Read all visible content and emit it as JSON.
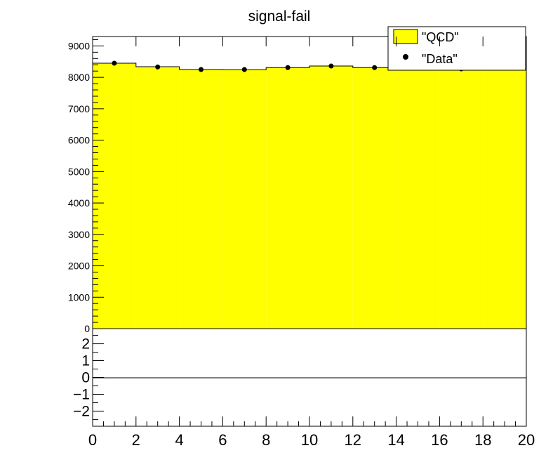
{
  "chart_data": {
    "type": "bar",
    "title": "signal-fail",
    "xlabel": "",
    "ylabel": "",
    "xlim": [
      0,
      20
    ],
    "ylim": [
      0,
      9300
    ],
    "ratio_ylim": [
      -2.9,
      2.9
    ],
    "grid": false,
    "legend_position": "top-right",
    "x_ticks": [
      "0",
      "2",
      "4",
      "6",
      "8",
      "10",
      "12",
      "14",
      "16",
      "18",
      "20"
    ],
    "y_ticks": [
      "0",
      "1000",
      "2000",
      "3000",
      "4000",
      "5000",
      "6000",
      "7000",
      "8000",
      "9000"
    ],
    "ratio_ticks": [
      "−2",
      "−1",
      "0",
      "1",
      "2"
    ],
    "bin_edges": [
      0,
      2,
      4,
      6,
      8,
      10,
      12,
      14,
      16,
      18,
      20
    ],
    "series": [
      {
        "name": "\"QCD\"",
        "kind": "histogram",
        "color": "#ffff00",
        "values": [
          8450,
          8340,
          8250,
          8240,
          8310,
          8360,
          8310,
          8330,
          8290,
          8330
        ]
      },
      {
        "name": "\"Data\"",
        "kind": "points",
        "color": "#000000",
        "x": [
          1,
          3,
          5,
          7,
          9,
          11,
          13,
          15,
          17,
          19
        ],
        "values": [
          8450,
          8330,
          8250,
          8250,
          8310,
          8360,
          8310,
          8330,
          8270,
          8330
        ]
      }
    ]
  }
}
